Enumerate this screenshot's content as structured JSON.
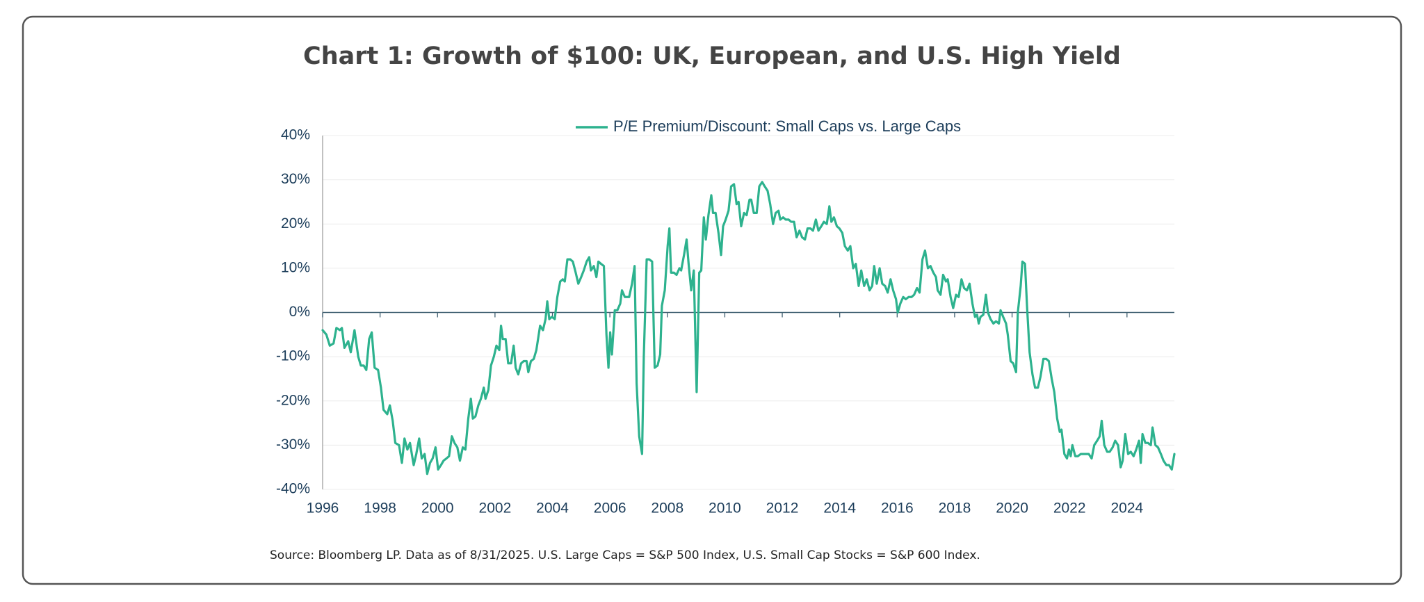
{
  "chart_data": {
    "type": "line",
    "title": "Chart 1: Growth of $100: UK, European, and U.S. High Yield",
    "source": "Source: Bloomberg LP. Data as of 8/31/2025. U.S. Large Caps = S&P 500 Index, U.S. Small Cap Stocks = S&P 600 Index.",
    "legend": "top",
    "grid": true,
    "xlim": [
      1996,
      2025.65
    ],
    "xticks": [
      1996,
      1998,
      2000,
      2002,
      2004,
      2006,
      2008,
      2010,
      2012,
      2014,
      2016,
      2018,
      2020,
      2022,
      2024
    ],
    "ylim": [
      -40,
      40
    ],
    "yticks": [
      {
        "value": 40,
        "label": "40%"
      },
      {
        "value": 30,
        "label": "30%"
      },
      {
        "value": 20,
        "label": "20%"
      },
      {
        "value": 10,
        "label": "10%"
      },
      {
        "value": 0,
        "label": "0%"
      },
      {
        "value": -10,
        "label": "-10%"
      },
      {
        "value": -20,
        "label": "-20%"
      },
      {
        "value": -30,
        "label": "-30%"
      },
      {
        "value": -40,
        "label": "-40%"
      }
    ],
    "x": [
      1996,
      1996.13,
      1996.25,
      1996.38,
      1996.48,
      1996.6,
      1996.67,
      1996.76,
      1996.89,
      1996.98,
      1997.11,
      1997.24,
      1997.33,
      1997.43,
      1997.52,
      1997.62,
      1997.71,
      1997.81,
      1997.93,
      1998.03,
      1998.12,
      1998.25,
      1998.34,
      1998.44,
      1998.53,
      1998.66,
      1998.76,
      1998.85,
      1998.95,
      1999.04,
      1999.17,
      1999.26,
      1999.36,
      1999.45,
      1999.55,
      1999.64,
      1999.74,
      1999.83,
      1999.93,
      2000.02,
      2000.12,
      2000.21,
      2000.31,
      2000.4,
      2000.5,
      2000.59,
      2000.69,
      2000.78,
      2000.88,
      2000.97,
      2001.07,
      2001.16,
      2001.23,
      2001.32,
      2001.42,
      2001.51,
      2001.61,
      2001.67,
      2001.77,
      2001.86,
      2001.96,
      2002.05,
      2002.15,
      2002.21,
      2002.27,
      2002.37,
      2002.46,
      2002.56,
      2002.65,
      2002.72,
      2002.81,
      2002.91,
      2003,
      2003.1,
      2003.16,
      2003.25,
      2003.35,
      2003.44,
      2003.57,
      2003.67,
      2003.76,
      2003.82,
      2003.89,
      2003.98,
      2004.08,
      2004.17,
      2004.27,
      2004.36,
      2004.43,
      2004.52,
      2004.62,
      2004.71,
      2004.81,
      2004.9,
      2005,
      2005.09,
      2005.19,
      2005.28,
      2005.34,
      2005.44,
      2005.53,
      2005.6,
      2005.69,
      2005.79,
      2005.88,
      2005.95,
      2006.01,
      2006.07,
      2006.17,
      2006.26,
      2006.36,
      2006.42,
      2006.52,
      2006.61,
      2006.67,
      2006.77,
      2006.86,
      2006.93,
      2007.02,
      2007.12,
      2007.18,
      2007.28,
      2007.37,
      2007.47,
      2007.56,
      2007.66,
      2007.75,
      2007.81,
      2007.91,
      2008.01,
      2008.07,
      2008.13,
      2008.23,
      2008.32,
      2008.42,
      2008.48,
      2008.58,
      2008.67,
      2008.74,
      2008.83,
      2008.92,
      2009.02,
      2009.11,
      2009.18,
      2009.27,
      2009.34,
      2009.43,
      2009.53,
      2009.59,
      2009.68,
      2009.78,
      2009.87,
      2009.94,
      2010.03,
      2010.13,
      2010.22,
      2010.32,
      2010.41,
      2010.48,
      2010.57,
      2010.67,
      2010.76,
      2010.86,
      2010.92,
      2011.01,
      2011.11,
      2011.2,
      2011.3,
      2011.39,
      2011.49,
      2011.58,
      2011.68,
      2011.77,
      2011.87,
      2011.93,
      2012.03,
      2012.12,
      2012.22,
      2012.31,
      2012.41,
      2012.5,
      2012.6,
      2012.69,
      2012.79,
      2012.88,
      2012.98,
      2013.07,
      2013.17,
      2013.26,
      2013.36,
      2013.45,
      2013.55,
      2013.64,
      2013.71,
      2013.8,
      2013.9,
      2013.99,
      2014.09,
      2014.18,
      2014.28,
      2014.37,
      2014.47,
      2014.56,
      2014.66,
      2014.75,
      2014.85,
      2014.94,
      2015.04,
      2015.13,
      2015.2,
      2015.29,
      2015.39,
      2015.48,
      2015.58,
      2015.67,
      2015.77,
      2015.86,
      2015.96,
      2016.02,
      2016.11,
      2016.21,
      2016.3,
      2016.4,
      2016.5,
      2016.59,
      2016.69,
      2016.78,
      2016.88,
      2016.97,
      2017.07,
      2017.16,
      2017.26,
      2017.35,
      2017.41,
      2017.51,
      2017.6,
      2017.7,
      2017.76,
      2017.86,
      2017.95,
      2018.05,
      2018.14,
      2018.24,
      2018.33,
      2018.43,
      2018.52,
      2018.62,
      2018.71,
      2018.78,
      2018.84,
      2018.9,
      2019,
      2019.09,
      2019.16,
      2019.25,
      2019.35,
      2019.44,
      2019.54,
      2019.6,
      2019.69,
      2019.79,
      2019.85,
      2019.95,
      2020.04,
      2020.14,
      2020.2,
      2020.3,
      2020.36,
      2020.45,
      2020.52,
      2020.61,
      2020.71,
      2020.8,
      2020.9,
      2020.99,
      2021.09,
      2021.19,
      2021.28,
      2021.38,
      2021.47,
      2021.57,
      2021.66,
      2021.72,
      2021.82,
      2021.91,
      2021.98,
      2022.04,
      2022.1,
      2022.2,
      2022.29,
      2022.39,
      2022.48,
      2022.58,
      2022.67,
      2022.77,
      2022.86,
      2022.96,
      2023.05,
      2023.12,
      2023.21,
      2023.31,
      2023.4,
      2023.5,
      2023.59,
      2023.69,
      2023.78,
      2023.85,
      2023.94,
      2024.04,
      2024.13,
      2024.23,
      2024.32,
      2024.42,
      2024.48,
      2024.54,
      2024.64,
      2024.73,
      2024.83,
      2024.89,
      2024.99,
      2025.08,
      2025.18,
      2025.27,
      2025.37,
      2025.46,
      2025.56,
      2025.65
    ],
    "series": [
      {
        "name": "P/E Premium/Discount: Small Caps vs. Large Caps",
        "color": "#2db28e",
        "values": [
          -4,
          -5,
          -7.5,
          -7,
          -3.5,
          -4,
          -3.5,
          -8,
          -6.5,
          -9,
          -4,
          -10,
          -12,
          -12,
          -13,
          -6,
          -4.5,
          -12.5,
          -13,
          -17,
          -22,
          -23,
          -21,
          -24.5,
          -29.5,
          -30,
          -34,
          -28.5,
          -31,
          -29.5,
          -34.5,
          -32,
          -28.5,
          -33,
          -32,
          -36.5,
          -34,
          -33,
          -30.5,
          -35.5,
          -34.5,
          -33.5,
          -33,
          -32.5,
          -28,
          -29.5,
          -30.5,
          -33.5,
          -30.5,
          -31,
          -24,
          -19.5,
          -24,
          -23.5,
          -21,
          -19.5,
          -17,
          -19.5,
          -17.5,
          -12,
          -10,
          -7.5,
          -8.5,
          -3,
          -6,
          -6,
          -11.5,
          -11.5,
          -7.5,
          -12.5,
          -14,
          -11.5,
          -11,
          -11,
          -13.5,
          -11,
          -10.5,
          -8.5,
          -3,
          -4,
          -1.5,
          2.5,
          -1.5,
          -1,
          -1.5,
          3.5,
          7,
          7.5,
          7,
          12,
          12,
          11.5,
          9,
          6.5,
          8,
          9.5,
          11.5,
          12.5,
          9.5,
          10.5,
          8,
          11.5,
          11,
          10.5,
          -5,
          -12.5,
          -4.5,
          -9.5,
          0.5,
          0.5,
          2,
          5,
          3.5,
          3.5,
          3.5,
          6.5,
          10.5,
          -16,
          -28,
          -32,
          -10,
          12,
          12,
          11.5,
          -12.5,
          -12,
          -9.5,
          1.5,
          5,
          15,
          19,
          9,
          9,
          8.5,
          10,
          9.5,
          13,
          16.5,
          11,
          5,
          9.5,
          -18,
          9,
          9.5,
          21.5,
          16.5,
          22,
          26.5,
          22.5,
          22.5,
          18,
          13,
          19.5,
          21,
          23,
          28.5,
          29,
          24.5,
          25,
          19.5,
          22.5,
          22,
          25.5,
          25.5,
          22.5,
          22.5,
          28.5,
          29.5,
          28.5,
          27.5,
          24.5,
          20,
          22.5,
          23,
          21,
          21.5,
          21,
          21,
          20.5,
          20.5,
          17,
          18.5,
          17,
          16.5,
          19,
          19,
          18.5,
          21,
          18.5,
          19.5,
          20.5,
          20,
          24,
          20.5,
          21.5,
          19.5,
          19,
          18,
          15,
          14,
          15,
          10,
          11,
          6,
          9.5,
          6,
          7.5,
          5,
          6,
          10.5,
          6.5,
          10,
          6.5,
          6,
          4.5,
          7.5,
          5,
          3,
          0,
          2,
          3.5,
          3,
          3.5,
          3.5,
          4,
          5.5,
          4.5,
          12,
          14,
          10,
          10.5,
          9,
          8,
          5,
          4,
          8.5,
          7,
          7.5,
          3.5,
          1,
          4,
          3.5,
          7.5,
          5.5,
          5,
          6.5,
          2,
          -1,
          -0.5,
          -2.5,
          -1,
          -0.5,
          4,
          0,
          -1.5,
          -2.5,
          -2,
          -2.5,
          0.5,
          -1,
          -2.5,
          -5,
          -11,
          -11.5,
          -13.5,
          0,
          6,
          11.5,
          11,
          1.5,
          -9,
          -14,
          -17,
          -17,
          -14.5,
          -10.5,
          -10.5,
          -11,
          -15,
          -18,
          -24,
          -27,
          -26.5,
          -32,
          -33,
          -31,
          -32.5,
          -30,
          -32.5,
          -32.5,
          -32,
          -32,
          -32,
          -32,
          -33,
          -30,
          -29,
          -28,
          -24.5,
          -30,
          -31.5,
          -31.5,
          -30.5,
          -29,
          -30,
          -35,
          -33.5,
          -27.5,
          -32,
          -31.5,
          -32.5,
          -31,
          -29,
          -34,
          -27.5,
          -29.5,
          -29.5,
          -30,
          -26,
          -30,
          -30.5,
          -32,
          -33.5,
          -34.5,
          -34.5,
          -35.5,
          -32
        ]
      }
    ]
  }
}
